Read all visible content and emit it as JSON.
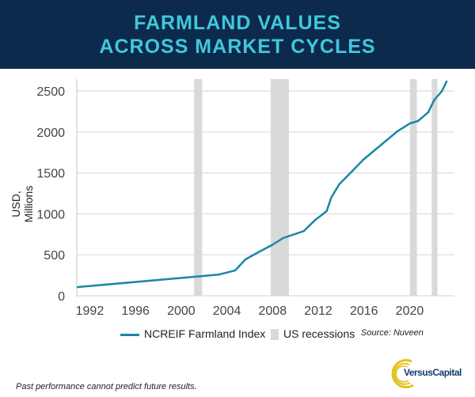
{
  "header": {
    "line1": "FARMLAND VALUES",
    "line2": "ACROSS MARKET CYCLES"
  },
  "colors": {
    "header_bg": "#0c2a4b",
    "title": "#40c8dc",
    "series": "#1a86a8",
    "recession": "#d9d9d9"
  },
  "chart_data": {
    "type": "line",
    "ylabel": "USD, Millions",
    "ylim": [
      0,
      2600
    ],
    "yticks": [
      0,
      500,
      1000,
      1500,
      2000,
      2500
    ],
    "xlim": [
      1991,
      2024
    ],
    "xticks": [
      1992,
      1996,
      2000,
      2004,
      2008,
      2012,
      2016,
      2020
    ],
    "grid": "horizontal",
    "legend": "bottom",
    "series": [
      {
        "name": "NCREIF Farmland Index",
        "x": [
          1991,
          2001.2,
          2003.4,
          2004.8,
          2005.7,
          2006.8,
          2008,
          2009,
          2010.8,
          2011.8,
          2012.8,
          2013.2,
          2013.9,
          2015,
          2016,
          2017,
          2018,
          2019,
          2020.1,
          2020.8,
          2021.7,
          2022.2,
          2022.9,
          2023.3
        ],
        "y": [
          106,
          232,
          260,
          310,
          444,
          530,
          618,
          705,
          790,
          925,
          1033,
          1196,
          1360,
          1515,
          1660,
          1776,
          1892,
          2008,
          2104,
          2133,
          2240,
          2385,
          2500,
          2616
        ]
      }
    ],
    "recessions": {
      "name": "US recessions",
      "periods": [
        [
          2001.2,
          2001.9
        ],
        [
          2007.9,
          2009.5
        ],
        [
          2020.1,
          2020.7
        ],
        [
          2022.0,
          2022.5
        ]
      ]
    },
    "source": "Source: Nuveen"
  },
  "footer": "Past performance cannot predict future results.",
  "logo": "VersusCapital"
}
